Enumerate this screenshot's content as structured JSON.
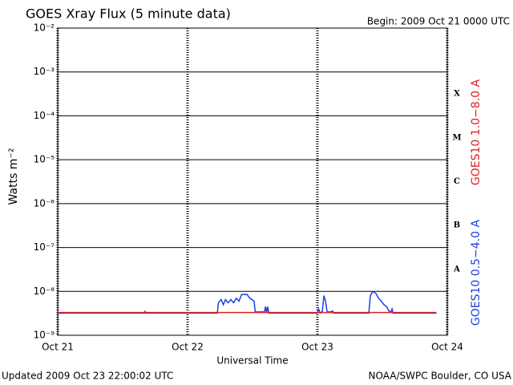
{
  "chart_data": {
    "type": "line",
    "title": "GOES Xray Flux (5 minute data)",
    "subtitle": "Begin:  2009 Oct 21 0000 UTC",
    "xlabel": "Universal Time",
    "ylabel": "Watts m⁻²",
    "footer_left": "Updated 2009 Oct 23 22:00:02 UTC",
    "footer_right": "NOAA/SWPC Boulder, CO USA",
    "log_y": true,
    "grid": true,
    "xlim": [
      0,
      72
    ],
    "xticks": [
      {
        "value": 0,
        "label": "Oct 21"
      },
      {
        "value": 24,
        "label": "Oct 22"
      },
      {
        "value": 48,
        "label": "Oct 23"
      },
      {
        "value": 72,
        "label": "Oct 24"
      }
    ],
    "ylim": [
      1e-09,
      0.01
    ],
    "yticks": [
      {
        "value": 1e-09,
        "label": "10⁻⁹"
      },
      {
        "value": 1e-08,
        "label": "10⁻⁸"
      },
      {
        "value": 1e-07,
        "label": "10⁻⁷"
      },
      {
        "value": 1e-06,
        "label": "10⁻⁶"
      },
      {
        "value": 1e-05,
        "label": "10⁻⁵"
      },
      {
        "value": 0.0001,
        "label": "10⁻⁴"
      },
      {
        "value": 0.001,
        "label": "10⁻³"
      },
      {
        "value": 0.01,
        "label": "10⁻²"
      }
    ],
    "flare_classes": [
      "A",
      "B",
      "C",
      "M",
      "X"
    ],
    "series": [
      {
        "name": "GOES10 1.0−8.0 A",
        "color": "#e02020",
        "x": [
          0,
          16,
          16.1,
          16.3,
          70
        ],
        "values": [
          3.3e-09,
          3.3e-09,
          3.5e-09,
          3.3e-09,
          3.3e-09
        ]
      },
      {
        "name": "GOES10 0.5−4.0 A",
        "color": "#1f3fdf",
        "x": [
          0,
          29.5,
          29.7,
          30.2,
          30.6,
          31,
          31.5,
          32,
          32.5,
          33,
          33.5,
          34,
          35,
          35.5,
          36.3,
          36.5,
          38.2,
          38.4,
          38.6,
          38.8,
          39,
          48,
          48.2,
          48.5,
          48.9,
          49.2,
          49.5,
          49.8,
          50.5,
          50.8,
          51,
          57.5,
          57.8,
          58.2,
          58.8,
          59.3,
          59.8,
          60.3,
          60.8,
          61.2,
          61.6,
          61.8,
          62,
          70
        ],
        "values": [
          3.2e-09,
          3.2e-09,
          5.5e-09,
          6.5e-09,
          5e-09,
          6.5e-09,
          5.5e-09,
          6.5e-09,
          5.5e-09,
          7e-09,
          6e-09,
          8.5e-09,
          8.5e-09,
          7e-09,
          6e-09,
          3.4e-09,
          3.4e-09,
          4.5e-09,
          3.2e-09,
          4.5e-09,
          3.2e-09,
          3.2e-09,
          4e-09,
          3.2e-09,
          3.5e-09,
          8e-09,
          6e-09,
          3.4e-09,
          3.4e-09,
          3.6e-09,
          3.2e-09,
          3.2e-09,
          8e-09,
          1e-08,
          9e-09,
          7e-09,
          6e-09,
          5e-09,
          4.5e-09,
          3.6e-09,
          3.4e-09,
          4e-09,
          3.2e-09,
          3.2e-09
        ]
      }
    ]
  }
}
